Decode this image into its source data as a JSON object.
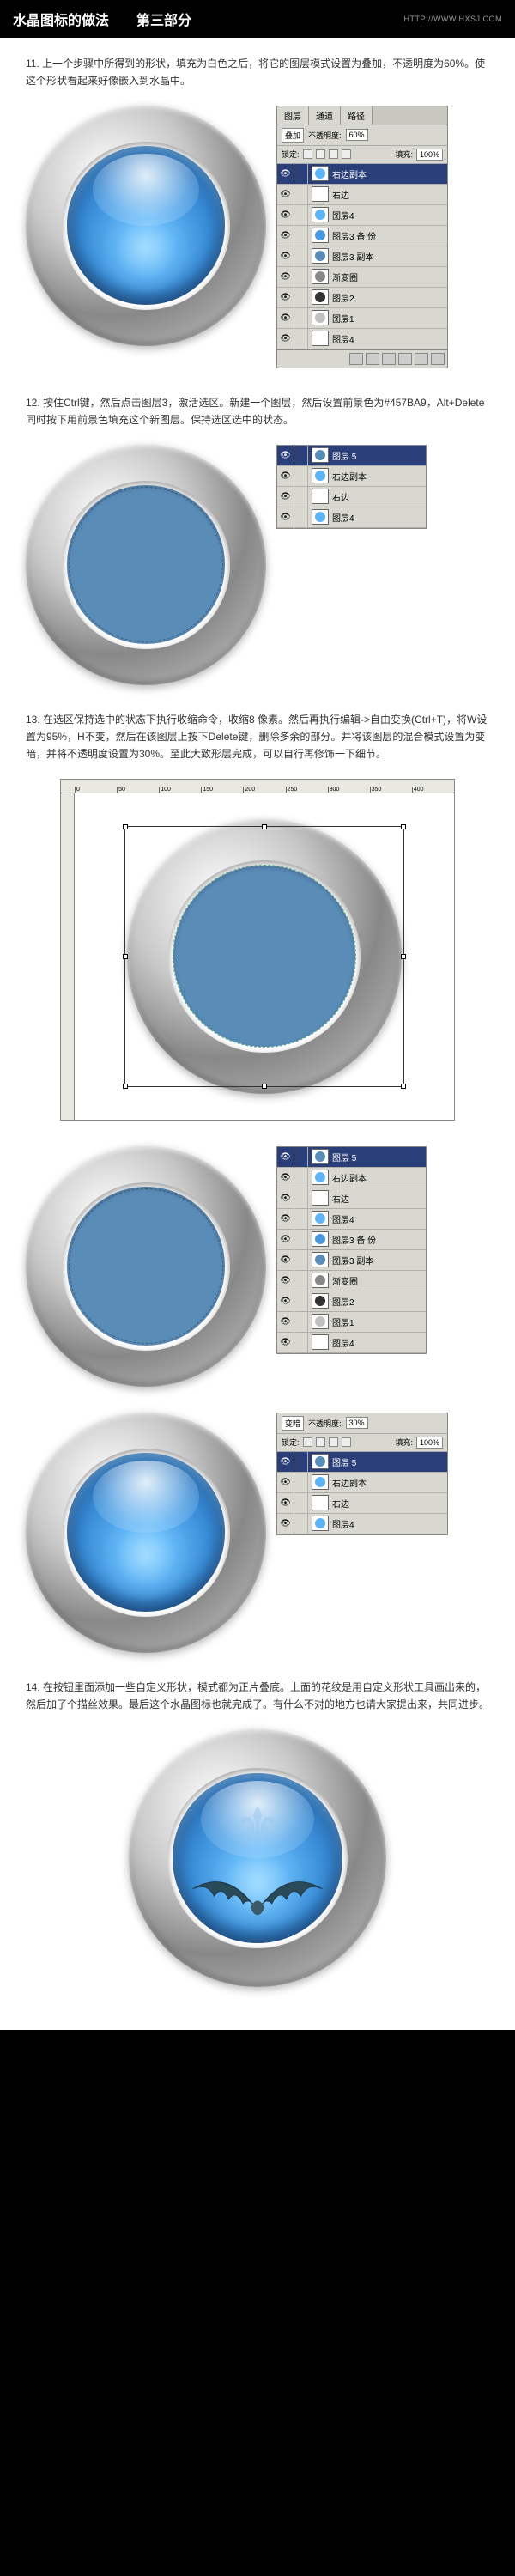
{
  "header": {
    "title": "水晶图标的做法　　第三部分",
    "link": "HTTP://WWW.HXSJ.COM"
  },
  "step11": "11.  上一个步骤中所得到的形状，填充为白色之后，将它的图层模式设置为叠加，不透明度为60%。使这个形状看起来好像嵌入到水晶中。",
  "step12": "12.  按住Ctrl键，然后点击图层3，激活选区。新建一个图层，然后设置前景色为#457BA9，Alt+Delete同时按下用前景色填充这个新图层。保持选区选中的状态。",
  "step13": "13.  在选区保持选中的状态下执行收缩命令，收缩8 像素。然后再执行编辑->自由变换(Ctrl+T)，将W设置为95%，H不变，然后在该图层上按下Delete键，删除多余的部分。并将该图层的混合模式设置为变暗，并将不透明度设置为30%。至此大致形层完成，可以自行再修饰一下细节。",
  "step14": "14.  在按钮里面添加一些自定义形状，模式都为正片叠底。上面的花纹是用自定义形状工具画出来的，然后加了个描丝效果。最后这个水晶图标也就完成了。有什么不对的地方也请大家提出来，共同进步。",
  "blend_modes": {
    "overlay": "叠加",
    "darken": "变暗"
  },
  "opacity_label": "不透明度:",
  "fill_label": "填充:",
  "lock_label": "锁定:",
  "opacity_60": "60%",
  "opacity_30": "30%",
  "opacity_100": "100%",
  "tabs": {
    "layers": "图层",
    "channels": "通道",
    "paths": "路径"
  },
  "colors": {
    "fill_457ba9": "#457BA9",
    "sel_blue": "#2a3f7a",
    "blue_glass": "#4a98dd",
    "flat_blue": "#5a8cb8",
    "dark_circle": "#333333",
    "grey_circle": "#888888",
    "white": "#ffffff"
  },
  "panel1_layers": [
    {
      "name": "右边副本",
      "thumb": "#5fb4f5",
      "sel": true
    },
    {
      "name": "右边",
      "thumb": "#ffffff"
    },
    {
      "name": "图层4",
      "thumb": "#5fb4f5"
    },
    {
      "name": "图层3 备 份",
      "thumb": "#4a98dd"
    },
    {
      "name": "图层3 副本",
      "thumb": "#5a8cb8"
    },
    {
      "name": "渐变圈",
      "thumb": "#888888"
    },
    {
      "name": "图层2",
      "thumb": "#333333"
    },
    {
      "name": "图层1",
      "thumb": "#c0c0c0"
    },
    {
      "name": "图层4",
      "thumb": "#ffffff"
    }
  ],
  "panel2_layers": [
    {
      "name": "图层 5",
      "thumb": "#5a8cb8",
      "sel": true
    },
    {
      "name": "右边副本",
      "thumb": "#5fb4f5"
    },
    {
      "name": "右边",
      "thumb": "#ffffff"
    },
    {
      "name": "图层4",
      "thumb": "#5fb4f5"
    }
  ],
  "panel3_layers": [
    {
      "name": "图层 5",
      "thumb": "#5a8cb8",
      "sel": true
    },
    {
      "name": "右边副本",
      "thumb": "#5fb4f5"
    },
    {
      "name": "右边",
      "thumb": "#ffffff"
    },
    {
      "name": "图层4",
      "thumb": "#5fb4f5"
    },
    {
      "name": "图层3 备 份",
      "thumb": "#4a98dd"
    },
    {
      "name": "图层3 副本",
      "thumb": "#5a8cb8"
    },
    {
      "name": "渐变圈",
      "thumb": "#888888"
    },
    {
      "name": "图层2",
      "thumb": "#333333"
    },
    {
      "name": "图层1",
      "thumb": "#c0c0c0"
    },
    {
      "name": "图层4",
      "thumb": "#ffffff"
    }
  ],
  "ruler_ticks": [
    "0",
    "50",
    "100",
    "150",
    "200",
    "250",
    "300",
    "350",
    "400"
  ]
}
